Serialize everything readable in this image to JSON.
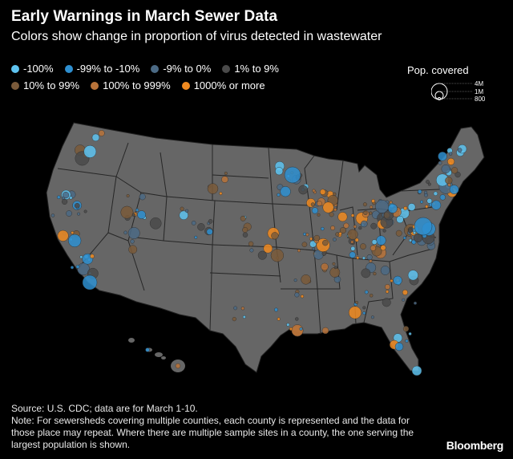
{
  "title": "Early Warnings in March Sewer Data",
  "subtitle": "Colors show change in proportion of virus detected in wastewater",
  "legend": [
    {
      "label": "-100%",
      "color": "#5ec3f0"
    },
    {
      "label": "-99% to -10%",
      "color": "#2e8fd0"
    },
    {
      "label": "-9% to 0%",
      "color": "#4b6a85"
    },
    {
      "label": "1% to 9%",
      "color": "#4a4a4a"
    },
    {
      "label": "10% to 99%",
      "color": "#7a5a3a"
    },
    {
      "label": "100% to 999%",
      "color": "#b8733a"
    },
    {
      "label": "1000% or more",
      "color": "#f08a20"
    }
  ],
  "pop_legend": {
    "title": "Pop. covered",
    "labels": [
      "4M",
      "1M",
      "800"
    ]
  },
  "source": "Source: U.S. CDC; data are for March 1-10.",
  "note": "Note: For sewersheds covering multiple counties, each county is represented and the data for those place may repeat. Where there are multiple sample sites in a county, the one serving the largest population is shown.",
  "brand": "Bloomberg",
  "map_style": {
    "land": "#666666",
    "border": "#1a1a1a"
  }
}
